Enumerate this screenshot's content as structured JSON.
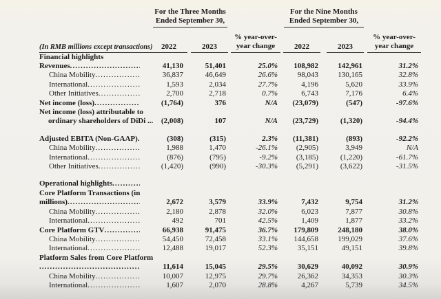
{
  "colors": {
    "ink": "#1a1a1a",
    "rule": "#2b2b2b",
    "page_bg": "#f2f0eb"
  },
  "header": {
    "group1_line1": "For the Three Months",
    "group1_line2": "Ended September 30,",
    "group2_line1": "For the Nine Months",
    "group2_line2": "Ended September 30,",
    "label_header": "(In RMB millions except transactions)",
    "year1": "2022",
    "year2": "2023",
    "pct_line1": "% year-over-",
    "pct_line2": "year change"
  },
  "table": {
    "columns": [
      "3m-2022",
      "3m-2023",
      "3m-pct-change",
      "9m-2022",
      "9m-2023",
      "9m-pct-change"
    ],
    "rows": [
      {
        "label": "Financial highlights",
        "bold": true,
        "leader": false,
        "values": []
      },
      {
        "label": "Revenues",
        "bold": true,
        "leader": true,
        "values": [
          "41,130",
          "51,401",
          "25.0%",
          "108,982",
          "142,961",
          "31.2%"
        ]
      },
      {
        "label": "China Mobility",
        "indent": true,
        "leader": true,
        "values": [
          "36,837",
          "46,649",
          "26.6%",
          "98,043",
          "130,165",
          "32.8%"
        ]
      },
      {
        "label": "International",
        "indent": true,
        "leader": true,
        "values": [
          "1,593",
          "2,034",
          "27.7%",
          "4,196",
          "5,620",
          "33.9%"
        ]
      },
      {
        "label": "Other Initiatives",
        "indent": true,
        "leader": true,
        "values": [
          "2,700",
          "2,718",
          "0.7%",
          "6,743",
          "7,176",
          "6.4%"
        ]
      },
      {
        "label": "Net income (loss)",
        "bold": true,
        "leader": true,
        "values": [
          "(1,764)",
          "376",
          "N/A",
          "(23,079)",
          "(547)",
          "-97.6%"
        ]
      },
      {
        "label": "Net income (loss) attributable to",
        "label2": "ordinary shareholders of DiDi ...",
        "label2_indent": true,
        "bold": true,
        "leader": false,
        "values": [
          "(2,008)",
          "107",
          "N/A",
          "(23,729)",
          "(1,320)",
          "-94.4%"
        ]
      },
      {
        "spacer": true
      },
      {
        "label": "Adjusted EBITA (Non-GAAP)",
        "bold": true,
        "leader": true,
        "values": [
          "(308)",
          "(315)",
          "2.3%",
          "(11,381)",
          "(893)",
          "-92.2%"
        ]
      },
      {
        "label": "China Mobility",
        "indent": true,
        "leader": true,
        "values": [
          "1,988",
          "1,470",
          "-26.1%",
          "(2,905)",
          "3,949",
          "N/A"
        ]
      },
      {
        "label": "International",
        "indent": true,
        "leader": true,
        "values": [
          "(876)",
          "(795)",
          "-9.2%",
          "(3,185)",
          "(1,220)",
          "-61.7%"
        ]
      },
      {
        "label": "Other Initiatives",
        "indent": true,
        "leader": true,
        "values": [
          "(1,420)",
          "(990)",
          "-30.3%",
          "(5,291)",
          "(3,622)",
          "-31.5%"
        ]
      },
      {
        "spacer": true
      },
      {
        "label": "Operational highlights",
        "bold": true,
        "leader": true,
        "values": []
      },
      {
        "label": "Core Platform Transactions (in",
        "label2": "millions)",
        "bold": true,
        "leader": true,
        "values": [
          "2,672",
          "3,579",
          "33.9%",
          "7,432",
          "9,754",
          "31.2%"
        ]
      },
      {
        "label": "China Mobility",
        "indent": true,
        "leader": true,
        "values": [
          "2,180",
          "2,878",
          "32.0%",
          "6,023",
          "7,877",
          "30.8%"
        ]
      },
      {
        "label": "International",
        "indent": true,
        "leader": true,
        "values": [
          "492",
          "701",
          "42.5%",
          "1,409",
          "1,877",
          "33.2%"
        ]
      },
      {
        "label": "Core Platform GTV",
        "bold": true,
        "leader": true,
        "values": [
          "66,938",
          "91,475",
          "36.7%",
          "179,809",
          "248,180",
          "38.0%"
        ]
      },
      {
        "label": "China Mobility",
        "indent": true,
        "leader": true,
        "values": [
          "54,450",
          "72,458",
          "33.1%",
          "144,658",
          "199,029",
          "37.6%"
        ]
      },
      {
        "label": "International",
        "indent": true,
        "leader": true,
        "values": [
          "12,488",
          "19,017",
          "52.3%",
          "35,151",
          "49,151",
          "39.8%"
        ]
      },
      {
        "label": "Platform Sales from Core Platform",
        "label2": "",
        "bold": true,
        "leader": true,
        "values": [
          "11,614",
          "15,045",
          "29.5%",
          "30,629",
          "40,092",
          "30.9%"
        ]
      },
      {
        "label": "China Mobility",
        "indent": true,
        "leader": true,
        "values": [
          "10,007",
          "12,975",
          "29.7%",
          "26,362",
          "34,353",
          "30.3%"
        ]
      },
      {
        "label": "International",
        "indent": true,
        "leader": true,
        "values": [
          "1,607",
          "2,070",
          "28.8%",
          "4,267",
          "5,739",
          "34.5%"
        ]
      }
    ]
  }
}
